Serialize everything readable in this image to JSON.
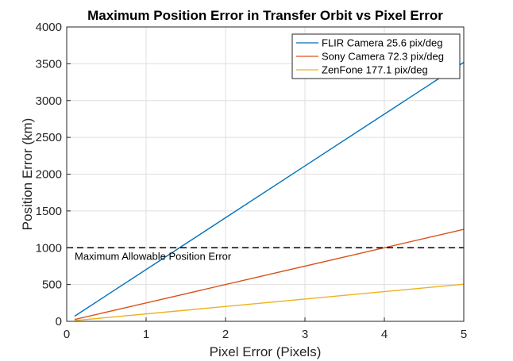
{
  "chart_data": {
    "type": "line",
    "title": "Maximum Position Error in Transfer Orbit vs Pixel Error",
    "xlabel": "Pixel Error (Pixels)",
    "ylabel": "Position Error (km)",
    "xlim": [
      0,
      5
    ],
    "ylim": [
      0,
      4000
    ],
    "xticks": [
      0,
      1,
      2,
      3,
      4,
      5
    ],
    "yticks": [
      0,
      500,
      1000,
      1500,
      2000,
      2500,
      3000,
      3500,
      4000
    ],
    "grid": true,
    "legend_position": "top-right",
    "series": [
      {
        "name": "FLIR Camera 25.6 pix/deg",
        "color": "#0072BD",
        "x": [
          0.1,
          5
        ],
        "y": [
          70,
          3520
        ]
      },
      {
        "name": "Sony Camera 72.3 pix/deg",
        "color": "#D95319",
        "x": [
          0.1,
          5
        ],
        "y": [
          25,
          1250
        ]
      },
      {
        "name": "ZenFone 177.1 pix/deg",
        "color": "#EDB120",
        "x": [
          0.1,
          5
        ],
        "y": [
          10,
          505
        ]
      }
    ],
    "reference_line": {
      "y": 1000,
      "style": "dashed",
      "color": "#000000",
      "label": "Maximum Allowable Position Error"
    }
  }
}
